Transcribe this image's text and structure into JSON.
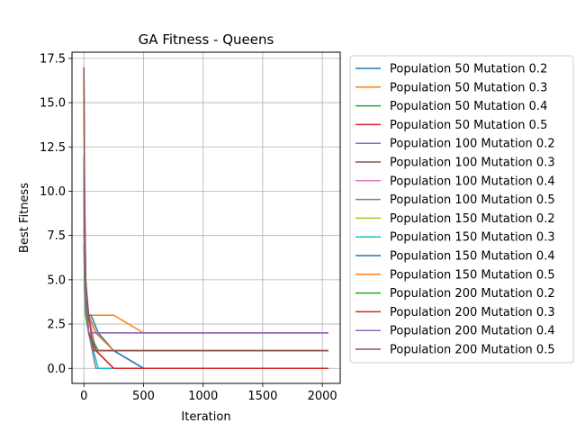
{
  "chart_data": {
    "type": "line",
    "title": "GA Fitness - Queens",
    "xlabel": "Iteration",
    "ylabel": "Best Fitness",
    "xlim": [
      -100,
      2150
    ],
    "ylim": [
      -0.85,
      17.85
    ],
    "xticks": [
      0,
      500,
      1000,
      1500,
      2000
    ],
    "xtick_labels": [
      "0",
      "500",
      "1000",
      "1500",
      "2000"
    ],
    "yticks": [
      0,
      2.5,
      5,
      7.5,
      10,
      12.5,
      15,
      17.5
    ],
    "ytick_labels": [
      "0.0",
      "2.5",
      "5.0",
      "7.5",
      "10.0",
      "12.5",
      "15.0",
      "17.5"
    ],
    "grid": true,
    "legend_position": "outside-right",
    "series": [
      {
        "name": "Population 50 Mutation 0.2",
        "color": "#1f77b4",
        "x": [
          0,
          5,
          15,
          40,
          100,
          250,
          500,
          2050
        ],
        "y": [
          10,
          7,
          4,
          3,
          2,
          1,
          0,
          0
        ]
      },
      {
        "name": "Population 50 Mutation 0.3",
        "color": "#ff7f0e",
        "x": [
          0,
          5,
          15,
          40,
          60,
          250,
          500,
          2050
        ],
        "y": [
          11,
          7,
          4,
          3,
          3,
          3,
          2,
          2
        ]
      },
      {
        "name": "Population 50 Mutation 0.4",
        "color": "#2ca02c",
        "x": [
          0,
          5,
          15,
          40,
          120,
          250,
          500,
          2050
        ],
        "y": [
          7,
          5,
          3,
          2,
          1,
          1,
          1,
          1
        ]
      },
      {
        "name": "Population 50 Mutation 0.5",
        "color": "#d62728",
        "x": [
          0,
          5,
          15,
          40,
          100,
          250,
          500,
          2050
        ],
        "y": [
          11,
          6,
          4,
          3,
          1,
          0,
          0,
          0
        ]
      },
      {
        "name": "Population 100 Mutation 0.2",
        "color": "#9467bd",
        "x": [
          0,
          5,
          15,
          40,
          100,
          250,
          500,
          2050
        ],
        "y": [
          10,
          6,
          4,
          3,
          2,
          2,
          2,
          2
        ]
      },
      {
        "name": "Population 100 Mutation 0.3",
        "color": "#8c564b",
        "x": [
          0,
          5,
          15,
          40,
          80,
          250,
          500,
          2050
        ],
        "y": [
          12,
          7,
          4,
          2,
          1,
          1,
          1,
          1
        ]
      },
      {
        "name": "Population 100 Mutation 0.4",
        "color": "#e377c2",
        "x": [
          0,
          5,
          15,
          40,
          100,
          250,
          500,
          2050
        ],
        "y": [
          11,
          6,
          4,
          3,
          1,
          1,
          1,
          1
        ]
      },
      {
        "name": "Population 100 Mutation 0.5",
        "color": "#7f7f7f",
        "x": [
          0,
          5,
          15,
          40,
          100,
          250,
          500,
          2050
        ],
        "y": [
          12,
          7,
          4,
          2,
          0,
          0,
          0,
          0
        ]
      },
      {
        "name": "Population 150 Mutation 0.2",
        "color": "#bcbd22",
        "x": [
          0,
          5,
          15,
          40,
          120,
          250,
          500,
          2050
        ],
        "y": [
          9,
          6,
          4,
          2,
          1,
          1,
          1,
          1
        ]
      },
      {
        "name": "Population 150 Mutation 0.3",
        "color": "#17becf",
        "x": [
          0,
          5,
          15,
          40,
          120,
          250,
          500,
          2050
        ],
        "y": [
          12,
          8,
          4,
          2,
          0,
          0,
          0,
          0
        ]
      },
      {
        "name": "Population 150 Mutation 0.4",
        "color": "#1f77b4",
        "x": [
          0,
          5,
          15,
          40,
          60,
          120,
          250,
          500,
          2050
        ],
        "y": [
          11,
          7,
          4,
          3,
          3,
          2,
          1,
          0,
          0
        ]
      },
      {
        "name": "Population 150 Mutation 0.5",
        "color": "#ff7f0e",
        "x": [
          0,
          5,
          15,
          40,
          100,
          250,
          500,
          2050
        ],
        "y": [
          10,
          6,
          4,
          3,
          2,
          1,
          1,
          1
        ]
      },
      {
        "name": "Population 200 Mutation 0.2",
        "color": "#2ca02c",
        "x": [
          0,
          5,
          15,
          40,
          120,
          250,
          500,
          2050
        ],
        "y": [
          8,
          6,
          3,
          2,
          1,
          1,
          1,
          1
        ]
      },
      {
        "name": "Population 200 Mutation 0.3",
        "color": "#d62728",
        "x": [
          0,
          5,
          15,
          40,
          100,
          250,
          500,
          2050
        ],
        "y": [
          17,
          10,
          5,
          2,
          1,
          0,
          0,
          0
        ]
      },
      {
        "name": "Population 200 Mutation 0.4",
        "color": "#9467bd",
        "x": [
          0,
          5,
          15,
          40,
          80,
          250,
          500,
          2050
        ],
        "y": [
          11,
          6,
          4,
          2,
          2,
          2,
          2,
          2
        ]
      },
      {
        "name": "Population 200 Mutation 0.5",
        "color": "#8c564b",
        "x": [
          0,
          5,
          15,
          40,
          80,
          250,
          500,
          2050
        ],
        "y": [
          17,
          10,
          5,
          3,
          1,
          1,
          1,
          1
        ]
      }
    ]
  }
}
